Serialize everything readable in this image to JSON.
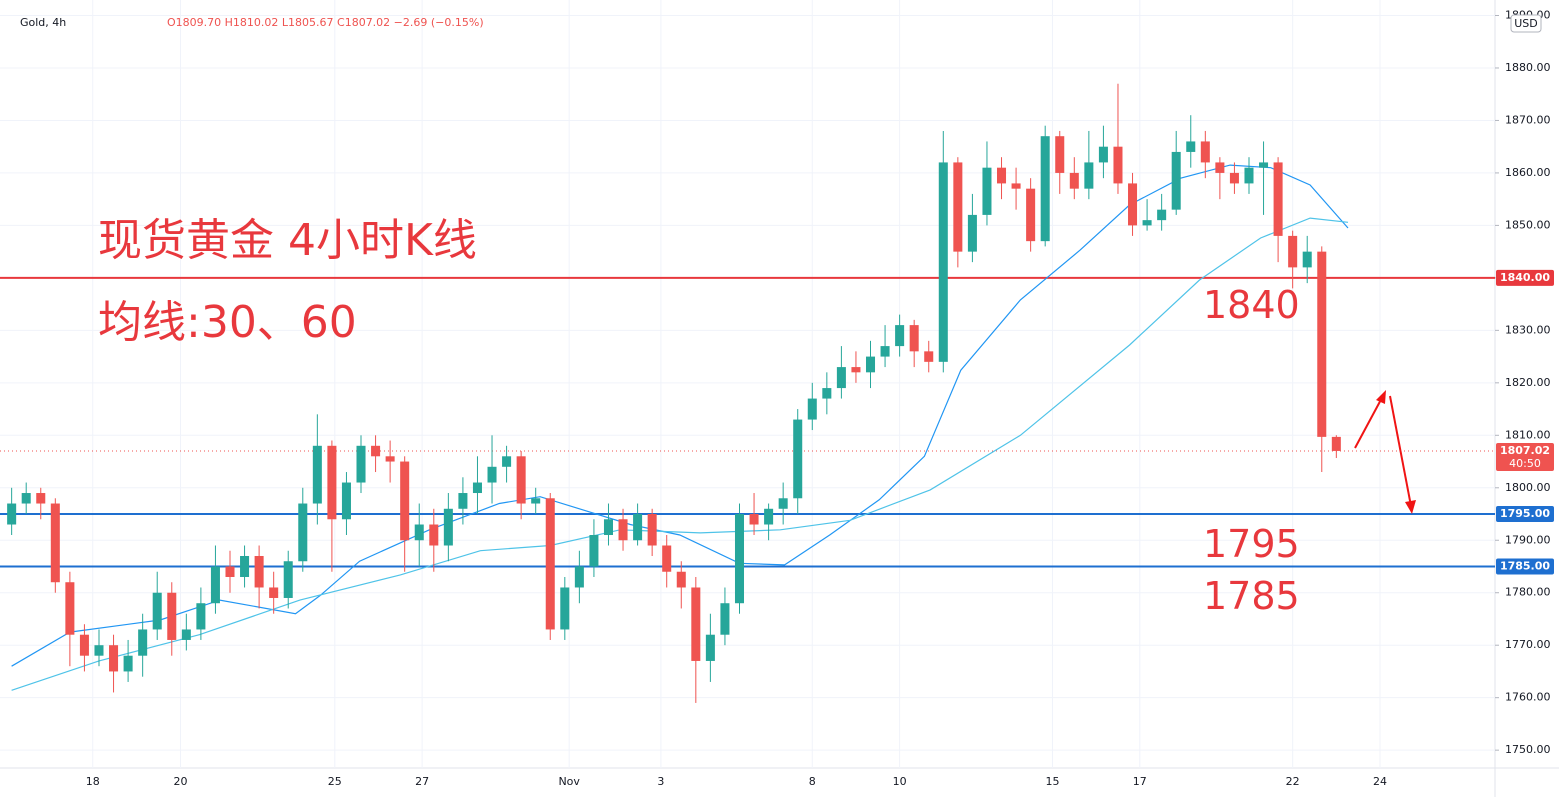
{
  "chart_data": {
    "type": "candlestick",
    "symbol": "Gold, 4h",
    "ohlc_text": "O1809.70 H1810.02 L1805.67 C1807.02 −2.69 (−0.15%)",
    "currency": "USD",
    "title": "现货黄金 4小时K线",
    "subtitle": "均线:30、60",
    "annotations": [
      "1840",
      "1795",
      "1785"
    ],
    "up_color": "#26a69a",
    "down_color": "#ef5350",
    "open": [
      1793,
      1797,
      1799,
      1797,
      1782,
      1772,
      1768,
      1770,
      1765,
      1768,
      1773,
      1780,
      1771,
      1773,
      1778,
      1785,
      1783,
      1787,
      1781,
      1779,
      1786,
      1797,
      1808,
      1794,
      1801,
      1808,
      1806,
      1805,
      1790,
      1793,
      1789,
      1796,
      1799,
      1801,
      1804,
      1806,
      1797,
      1798,
      1773,
      1781,
      1785,
      1791,
      1794,
      1790,
      1795,
      1789,
      1784,
      1781,
      1767,
      1772,
      1778,
      1795,
      1793,
      1796,
      1798,
      1813,
      1817,
      1819,
      1823,
      1822,
      1825,
      1827,
      1831,
      1826,
      1824,
      1862,
      1845,
      1852,
      1861,
      1858,
      1857,
      1847,
      1867,
      1860,
      1857,
      1862,
      1865,
      1858,
      1850,
      1851,
      1853,
      1864,
      1866,
      1862,
      1860,
      1858,
      1861,
      1862,
      1848,
      1842,
      1845,
      1809.7
    ],
    "high": [
      1800,
      1801,
      1800,
      1798,
      1784,
      1774,
      1773,
      1772,
      1771,
      1776,
      1784,
      1782,
      1776,
      1781,
      1789,
      1788,
      1789,
      1789,
      1784,
      1788,
      1800,
      1814,
      1809,
      1803,
      1810,
      1810,
      1809,
      1806,
      1797,
      1796,
      1799,
      1802,
      1806,
      1810,
      1808,
      1807,
      1800,
      1799,
      1783,
      1788,
      1794,
      1797,
      1796,
      1797,
      1796,
      1791,
      1786,
      1783,
      1776,
      1781,
      1797,
      1799,
      1797,
      1801,
      1815,
      1820,
      1822,
      1827,
      1826,
      1828,
      1831,
      1833,
      1832,
      1828,
      1868,
      1863,
      1856,
      1866,
      1863,
      1861,
      1859,
      1869,
      1868,
      1863,
      1868,
      1869,
      1877,
      1860,
      1855,
      1856,
      1868,
      1871,
      1868,
      1863,
      1862,
      1863,
      1866,
      1863,
      1849,
      1848,
      1846,
      1810.02
    ],
    "low": [
      1791,
      1795,
      1794,
      1780,
      1766,
      1765,
      1766,
      1761,
      1763,
      1764,
      1771,
      1768,
      1769,
      1771,
      1776,
      1780,
      1781,
      1777,
      1776,
      1777,
      1784,
      1793,
      1784,
      1791,
      1799,
      1803,
      1801,
      1784,
      1785,
      1784,
      1786,
      1793,
      1795,
      1797,
      1801,
      1794,
      1795,
      1771,
      1771,
      1778,
      1783,
      1789,
      1788,
      1789,
      1787,
      1781,
      1777,
      1759,
      1763,
      1770,
      1776,
      1791,
      1790,
      1793,
      1795,
      1811,
      1814,
      1817,
      1820,
      1819,
      1823,
      1825,
      1823,
      1822,
      1822,
      1842,
      1843,
      1850,
      1855,
      1853,
      1845,
      1846,
      1856,
      1855,
      1855,
      1859,
      1856,
      1848,
      1849,
      1849,
      1852,
      1861,
      1859,
      1855,
      1856,
      1856,
      1852,
      1843,
      1838,
      1839,
      1803,
      1805.67
    ],
    "close": [
      1797,
      1799,
      1797,
      1782,
      1772,
      1768,
      1770,
      1765,
      1768,
      1773,
      1780,
      1771,
      1773,
      1778,
      1785,
      1783,
      1787,
      1781,
      1779,
      1786,
      1797,
      1808,
      1794,
      1801,
      1808,
      1806,
      1805,
      1790,
      1793,
      1789,
      1796,
      1799,
      1801,
      1804,
      1806,
      1797,
      1798,
      1773,
      1781,
      1785,
      1791,
      1794,
      1790,
      1795,
      1789,
      1784,
      1781,
      1767,
      1772,
      1778,
      1795,
      1793,
      1796,
      1798,
      1813,
      1817,
      1819,
      1823,
      1822,
      1825,
      1827,
      1831,
      1826,
      1824,
      1862,
      1845,
      1852,
      1861,
      1858,
      1857,
      1847,
      1867,
      1860,
      1857,
      1862,
      1865,
      1858,
      1850,
      1851,
      1853,
      1864,
      1866,
      1862,
      1860,
      1858,
      1861,
      1862,
      1848,
      1842,
      1845,
      1809.7,
      1807.02
    ],
    "lines": [
      {
        "color": "#2196f3",
        "x": [
          0,
          4.0,
          10.2,
          14.3,
          19.5,
          21.2,
          23.9,
          28.7,
          33.5,
          36.3,
          39.0,
          42.5,
          45.9,
          50.0,
          53.1,
          56.2,
          59.6,
          62.7,
          65.2,
          69.3,
          73.4,
          76.8,
          80.3,
          83.7,
          86.5,
          89.2,
          91.8
        ],
        "values": [
          1766,
          1772.5,
          1774.8,
          1778.6,
          1776,
          1779.5,
          1786,
          1792,
          1797,
          1798.3,
          1796,
          1793,
          1791,
          1785.6,
          1785.3,
          1791,
          1797.7,
          1806,
          1822.4,
          1835.8,
          1845.3,
          1853.9,
          1859,
          1861.5,
          1861,
          1857.7,
          1849.5
        ]
      },
      {
        "color": "#4fc3e8",
        "x": [
          0,
          6.0,
          12.9,
          19.8,
          26.7,
          32.2,
          37.0,
          41.8,
          47.3,
          52.8,
          57.6,
          63.1,
          69.3,
          76.8,
          81.6,
          85.8,
          89.2,
          91.8
        ],
        "values": [
          1761.4,
          1767,
          1772,
          1778.6,
          1783.4,
          1788,
          1789,
          1792,
          1791.4,
          1792,
          1793.8,
          1799.6,
          1810,
          1827.2,
          1839.6,
          1847.6,
          1851.4,
          1850.6
        ]
      }
    ],
    "hlines": [
      {
        "value": 1840,
        "label": "1840.00",
        "color": "#e8383d"
      },
      {
        "value": 1795,
        "label": "1795.00",
        "color": "#1e6fd0"
      },
      {
        "value": 1785,
        "label": "1785.00",
        "color": "#1e6fd0"
      }
    ],
    "last_price": {
      "value": 1807.02,
      "label": "1807.02",
      "countdown": "40:50",
      "color": "#ef5350"
    },
    "xlim": [
      -0.8,
      101.9
    ],
    "xticks": [
      {
        "value": 5.57,
        "label": "18"
      },
      {
        "value": 11.6,
        "label": "20"
      },
      {
        "value": 22.2,
        "label": "25"
      },
      {
        "value": 28.2,
        "label": "27"
      },
      {
        "value": 38.3,
        "label": "Nov"
      },
      {
        "value": 44.6,
        "label": "3"
      },
      {
        "value": 55.0,
        "label": "8"
      },
      {
        "value": 61.0,
        "label": "10"
      },
      {
        "value": 71.5,
        "label": "15"
      },
      {
        "value": 77.5,
        "label": "17"
      },
      {
        "value": 88.0,
        "label": "22"
      },
      {
        "value": 94.0,
        "label": "24"
      }
    ],
    "ylim": [
      1746.6,
      1892
    ],
    "yticks": [
      {
        "value": 1750,
        "label": "1750.00"
      },
      {
        "value": 1760,
        "label": "1760.00"
      },
      {
        "value": 1770,
        "label": "1770.00"
      },
      {
        "value": 1780,
        "label": "1780.00"
      },
      {
        "value": 1790,
        "label": "1790.00"
      },
      {
        "value": 1800,
        "label": "1800.00"
      },
      {
        "value": 1810,
        "label": "1810.00"
      },
      {
        "value": 1820,
        "label": "1820.00"
      },
      {
        "value": 1830,
        "label": "1830.00"
      },
      {
        "value": 1840,
        "label": "1840.00"
      },
      {
        "value": 1850,
        "label": "1850.00"
      },
      {
        "value": 1860,
        "label": "1860.00"
      },
      {
        "value": 1870,
        "label": "1870.00"
      },
      {
        "value": 1880,
        "label": "1880.00"
      },
      {
        "value": 1890,
        "label": "1890.00"
      }
    ],
    "grid": true
  }
}
